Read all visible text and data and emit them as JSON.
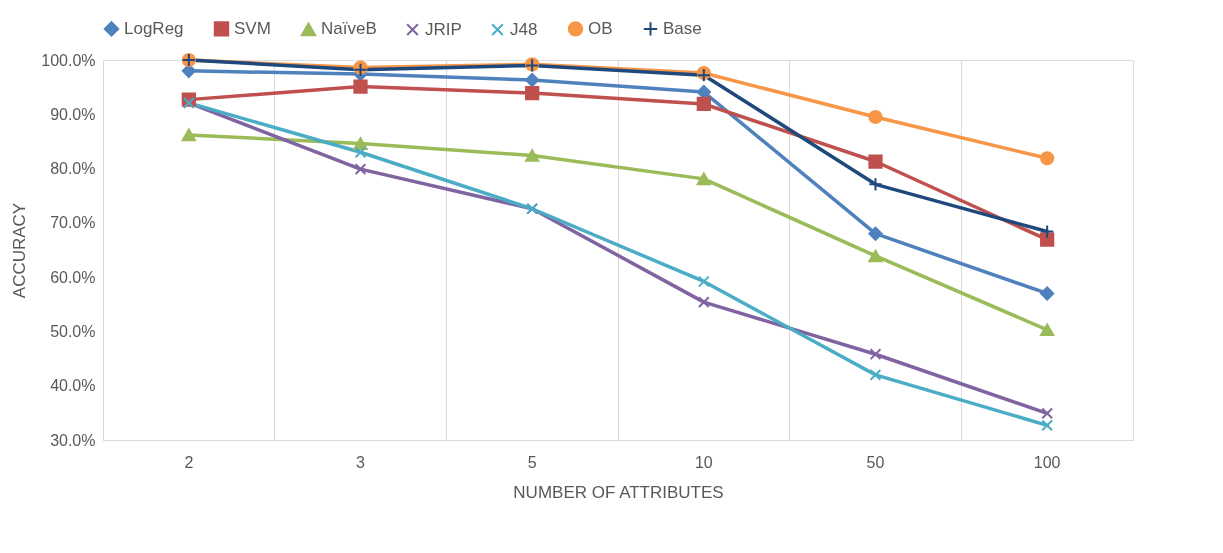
{
  "chart_data": {
    "type": "line",
    "xlabel": "NUMBER OF ATTRIBUTES",
    "ylabel": "ACCURACY",
    "categories": [
      "2",
      "3",
      "5",
      "10",
      "50",
      "100"
    ],
    "ylim": [
      30,
      100
    ],
    "yticks": [
      {
        "value": 30,
        "label": "30.0%"
      },
      {
        "value": 40,
        "label": "40.0%"
      },
      {
        "value": 50,
        "label": "50.0%"
      },
      {
        "value": 60,
        "label": "60.0%"
      },
      {
        "value": 70,
        "label": "70.0%"
      },
      {
        "value": 80,
        "label": "80.0%"
      },
      {
        "value": 90,
        "label": "90.0%"
      },
      {
        "value": 100,
        "label": "100.0%"
      }
    ],
    "grid": "x",
    "legend": "top",
    "line_style": "solid",
    "series": [
      {
        "name": "LogReg",
        "color": "#4f81bd",
        "marker": "diamond",
        "values": [
          98.0,
          97.4,
          96.3,
          94.1,
          68.0,
          57.0
        ]
      },
      {
        "name": "SVM",
        "color": "#c0504d",
        "marker": "square",
        "values": [
          92.7,
          95.1,
          93.9,
          91.9,
          81.3,
          66.9
        ]
      },
      {
        "name": "NaïveB",
        "color": "#9bbb59",
        "marker": "triangle",
        "values": [
          86.2,
          84.6,
          82.4,
          78.1,
          63.9,
          50.3
        ]
      },
      {
        "name": "JRIP",
        "color": "#8064a2",
        "marker": "cross",
        "values": [
          92.1,
          79.9,
          72.6,
          55.4,
          45.8,
          34.9
        ]
      },
      {
        "name": "J48",
        "color": "#4bacc6",
        "marker": "cross",
        "values": [
          92.1,
          83.0,
          72.6,
          59.2,
          42.0,
          32.7
        ]
      },
      {
        "name": "OB",
        "color": "#f79646",
        "marker": "circle",
        "values": [
          100.0,
          98.6,
          99.2,
          97.6,
          89.5,
          81.9
        ]
      },
      {
        "name": "Base",
        "color": "#1f497d",
        "marker": "plus",
        "values": [
          100.0,
          98.2,
          99.0,
          97.2,
          77.1,
          68.4
        ]
      }
    ]
  }
}
